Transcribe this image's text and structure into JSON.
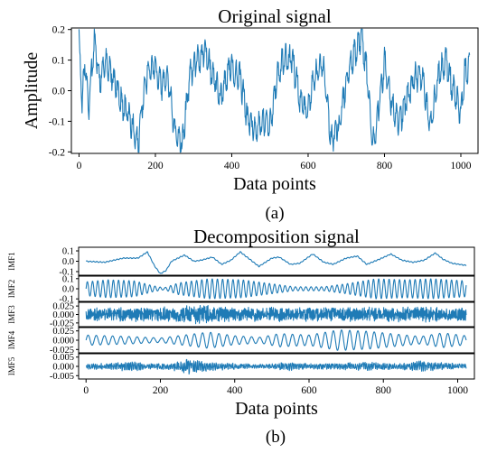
{
  "chart_data": [
    {
      "panel_label": "(a)",
      "type": "line",
      "title": "Original signal",
      "xlabel": "Data points",
      "ylabel": "Amplitude",
      "xlim": [
        -20,
        1045
      ],
      "ylim": [
        -0.205,
        0.205
      ],
      "x_ticks": [
        0,
        200,
        400,
        600,
        800,
        1000
      ],
      "y_ticks": [
        -0.2,
        -0.1,
        0.0,
        0.1,
        0.2
      ],
      "y_tick_labels": [
        "-0.2",
        "-0.1",
        "0.0",
        "0.1",
        "0.2"
      ],
      "series": [
        {
          "color": "#1f7bb6",
          "keyframes": [
            [
              0,
              0.16
            ],
            [
              8,
              -0.03
            ],
            [
              15,
              0.09
            ],
            [
              25,
              -0.06
            ],
            [
              40,
              0.17
            ],
            [
              55,
              0.02
            ],
            [
              70,
              0.1
            ],
            [
              90,
              0.04
            ],
            [
              110,
              -0.04
            ],
            [
              125,
              -0.06
            ],
            [
              140,
              -0.12
            ],
            [
              155,
              -0.18
            ],
            [
              165,
              -0.05
            ],
            [
              180,
              0.06
            ],
            [
              195,
              0.09
            ],
            [
              215,
              0.02
            ],
            [
              235,
              0.03
            ],
            [
              250,
              -0.13
            ],
            [
              270,
              -0.18
            ],
            [
              290,
              0.05
            ],
            [
              310,
              0.1
            ],
            [
              330,
              0.13
            ],
            [
              350,
              0.05
            ],
            [
              370,
              -0.02
            ],
            [
              395,
              0.08
            ],
            [
              420,
              0.05
            ],
            [
              440,
              -0.08
            ],
            [
              460,
              -0.13
            ],
            [
              480,
              -0.1
            ],
            [
              500,
              -0.12
            ],
            [
              520,
              0.05
            ],
            [
              540,
              0.12
            ],
            [
              560,
              0.09
            ],
            [
              580,
              -0.04
            ],
            [
              600,
              -0.06
            ],
            [
              620,
              0.06
            ],
            [
              640,
              0.09
            ],
            [
              660,
              -0.16
            ],
            [
              680,
              -0.12
            ],
            [
              700,
              0.03
            ],
            [
              720,
              0.12
            ],
            [
              740,
              0.18
            ],
            [
              755,
              0.05
            ],
            [
              770,
              -0.18
            ],
            [
              785,
              -0.05
            ],
            [
              800,
              0.09
            ],
            [
              820,
              -0.05
            ],
            [
              840,
              -0.11
            ],
            [
              860,
              -0.02
            ],
            [
              880,
              0.05
            ],
            [
              900,
              0.04
            ],
            [
              920,
              -0.12
            ],
            [
              940,
              0.04
            ],
            [
              960,
              0.1
            ],
            [
              975,
              0.02
            ],
            [
              990,
              -0.02
            ],
            [
              1000,
              -0.09
            ],
            [
              1010,
              0.06
            ],
            [
              1023,
              0.07
            ]
          ],
          "oscillation": {
            "amplitude": 0.055,
            "period": 10
          }
        }
      ]
    },
    {
      "panel_label": "(b)",
      "type": "line",
      "title": "Decomposition signal",
      "xlabel": "Data points",
      "xlim": [
        -20,
        1045
      ],
      "x_ticks": [
        0,
        200,
        400,
        600,
        800,
        1000
      ],
      "subplots": [
        {
          "name": "IMF1",
          "ylim": [
            -0.135,
            0.135
          ],
          "y_ticks": [
            -0.1,
            0.0,
            0.1
          ],
          "y_tick_labels": [
            "-0.1",
            "0.0",
            "0.1"
          ],
          "keyframes": [
            [
              0,
              0.0
            ],
            [
              50,
              -0.01
            ],
            [
              100,
              0.03
            ],
            [
              140,
              0.03
            ],
            [
              165,
              0.09
            ],
            [
              185,
              -0.05
            ],
            [
              200,
              -0.12
            ],
            [
              215,
              -0.09
            ],
            [
              230,
              0.0
            ],
            [
              265,
              0.06
            ],
            [
              290,
              0.0
            ],
            [
              310,
              0.01
            ],
            [
              340,
              0.04
            ],
            [
              365,
              -0.03
            ],
            [
              390,
              0.01
            ],
            [
              415,
              0.09
            ],
            [
              440,
              0.02
            ],
            [
              465,
              -0.05
            ],
            [
              500,
              0.03
            ],
            [
              520,
              0.04
            ],
            [
              550,
              -0.03
            ],
            [
              575,
              -0.02
            ],
            [
              610,
              0.07
            ],
            [
              640,
              -0.01
            ],
            [
              665,
              -0.03
            ],
            [
              700,
              0.03
            ],
            [
              730,
              0.05
            ],
            [
              755,
              -0.03
            ],
            [
              790,
              0.02
            ],
            [
              820,
              0.07
            ],
            [
              850,
              0.01
            ],
            [
              880,
              -0.01
            ],
            [
              910,
              0.01
            ],
            [
              940,
              0.08
            ],
            [
              960,
              0.02
            ],
            [
              985,
              -0.02
            ],
            [
              1023,
              -0.04
            ]
          ],
          "oscillation": {
            "amplitude": 0.006,
            "period": 9
          }
        },
        {
          "name": "IMF2",
          "ylim": [
            -0.125,
            0.125
          ],
          "y_ticks": [
            -0.1,
            0.0,
            0.1
          ],
          "y_tick_labels": [
            "-0.1",
            "0.0",
            "0.1"
          ],
          "envelope": [
            [
              0,
              0.07
            ],
            [
              60,
              0.09
            ],
            [
              130,
              0.08
            ],
            [
              180,
              0.03
            ],
            [
              210,
              0.01
            ],
            [
              250,
              0.06
            ],
            [
              330,
              0.1
            ],
            [
              420,
              0.09
            ],
            [
              500,
              0.05
            ],
            [
              560,
              0.02
            ],
            [
              640,
              0.02
            ],
            [
              700,
              0.05
            ],
            [
              780,
              0.1
            ],
            [
              860,
              0.09
            ],
            [
              930,
              0.1
            ],
            [
              1023,
              0.08
            ]
          ],
          "oscillation": {
            "period": 14
          }
        },
        {
          "name": "IMF3",
          "ylim": [
            -0.036,
            0.036
          ],
          "y_ticks": [
            -0.025,
            0.0,
            0.025
          ],
          "y_tick_labels": [
            "-0.025",
            "0.000",
            "0.025"
          ],
          "envelope": [
            [
              0,
              0.02
            ],
            [
              150,
              0.022
            ],
            [
              250,
              0.024
            ],
            [
              300,
              0.03
            ],
            [
              400,
              0.022
            ],
            [
              600,
              0.021
            ],
            [
              750,
              0.022
            ],
            [
              900,
              0.023
            ],
            [
              1023,
              0.02
            ]
          ],
          "oscillation": {
            "period": 2.6
          }
        },
        {
          "name": "IMF4",
          "ylim": [
            -0.034,
            0.034
          ],
          "y_ticks": [
            -0.025,
            0.0,
            0.025
          ],
          "y_tick_labels": [
            "-0.025",
            "0.000",
            "0.025"
          ],
          "envelope": [
            [
              0,
              0.014
            ],
            [
              120,
              0.01
            ],
            [
              200,
              0.006
            ],
            [
              280,
              0.016
            ],
            [
              330,
              0.022
            ],
            [
              400,
              0.012
            ],
            [
              470,
              0.008
            ],
            [
              520,
              0.018
            ],
            [
              600,
              0.014
            ],
            [
              680,
              0.028
            ],
            [
              760,
              0.024
            ],
            [
              840,
              0.016
            ],
            [
              900,
              0.01
            ],
            [
              960,
              0.02
            ],
            [
              1023,
              0.012
            ]
          ],
          "oscillation": {
            "period": 22
          }
        },
        {
          "name": "IMF5",
          "ylim": [
            -0.0068,
            0.0068
          ],
          "y_ticks": [
            -0.005,
            0.0,
            0.005
          ],
          "y_tick_labels": [
            "-0.005",
            "0.000",
            "0.005"
          ],
          "envelope": [
            [
              0,
              0.0015
            ],
            [
              80,
              0.002
            ],
            [
              120,
              0.003
            ],
            [
              160,
              0.0015
            ],
            [
              230,
              0.002
            ],
            [
              280,
              0.0045
            ],
            [
              330,
              0.0025
            ],
            [
              420,
              0.0015
            ],
            [
              500,
              0.0015
            ],
            [
              550,
              0.0025
            ],
            [
              600,
              0.0015
            ],
            [
              700,
              0.002
            ],
            [
              760,
              0.0025
            ],
            [
              840,
              0.0015
            ],
            [
              900,
              0.003
            ],
            [
              960,
              0.002
            ],
            [
              1023,
              0.0015
            ]
          ],
          "oscillation": {
            "period": 5
          }
        }
      ]
    }
  ]
}
